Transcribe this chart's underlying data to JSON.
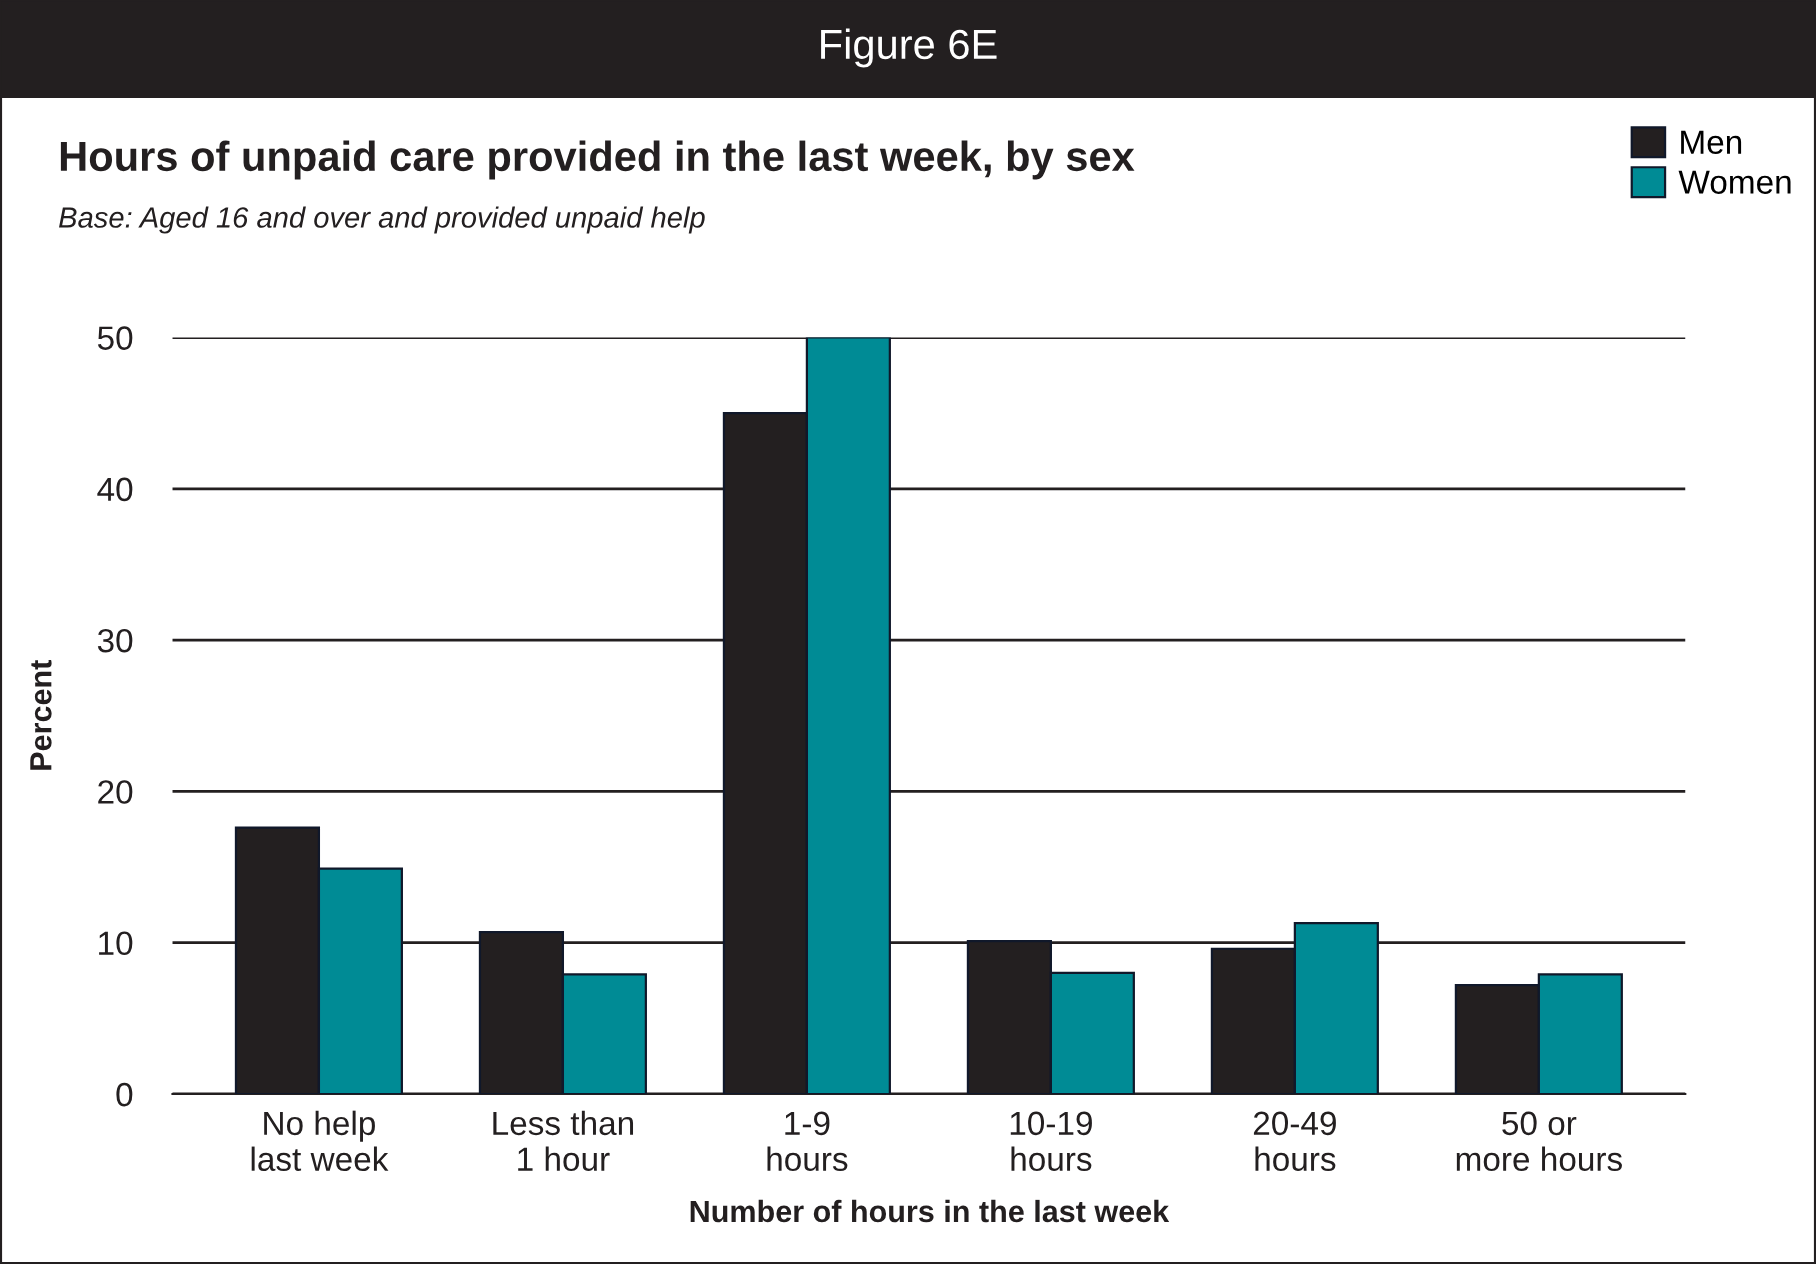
{
  "chart_data": {
    "type": "bar",
    "title": "Hours of unpaid care provided in the last week, by sex",
    "subtitle": "Base: Aged 16 and over and provided unpaid help",
    "annotations": [
      "Figure 6E"
    ],
    "xlabel": "Number of hours in the last week",
    "ylabel": "Percent",
    "categories": [
      "No help\nlast week",
      "Less than\n1 hour",
      "1-9\nhours",
      "10-19\nhours",
      "20-49\nhours",
      "50 or\nmore hours"
    ],
    "series": [
      {
        "name": "Men",
        "color": "#231f20",
        "values": [
          17.6,
          10.7,
          45.0,
          10.1,
          9.6,
          7.2
        ]
      },
      {
        "name": "Women",
        "color": "#008b95",
        "values": [
          14.9,
          7.9,
          50.0,
          8.0,
          11.3,
          7.9
        ]
      }
    ],
    "ylim": [
      0,
      50
    ],
    "yticks": [
      0,
      10,
      20,
      30,
      40,
      50
    ],
    "grid": "y",
    "legend": "top right"
  }
}
